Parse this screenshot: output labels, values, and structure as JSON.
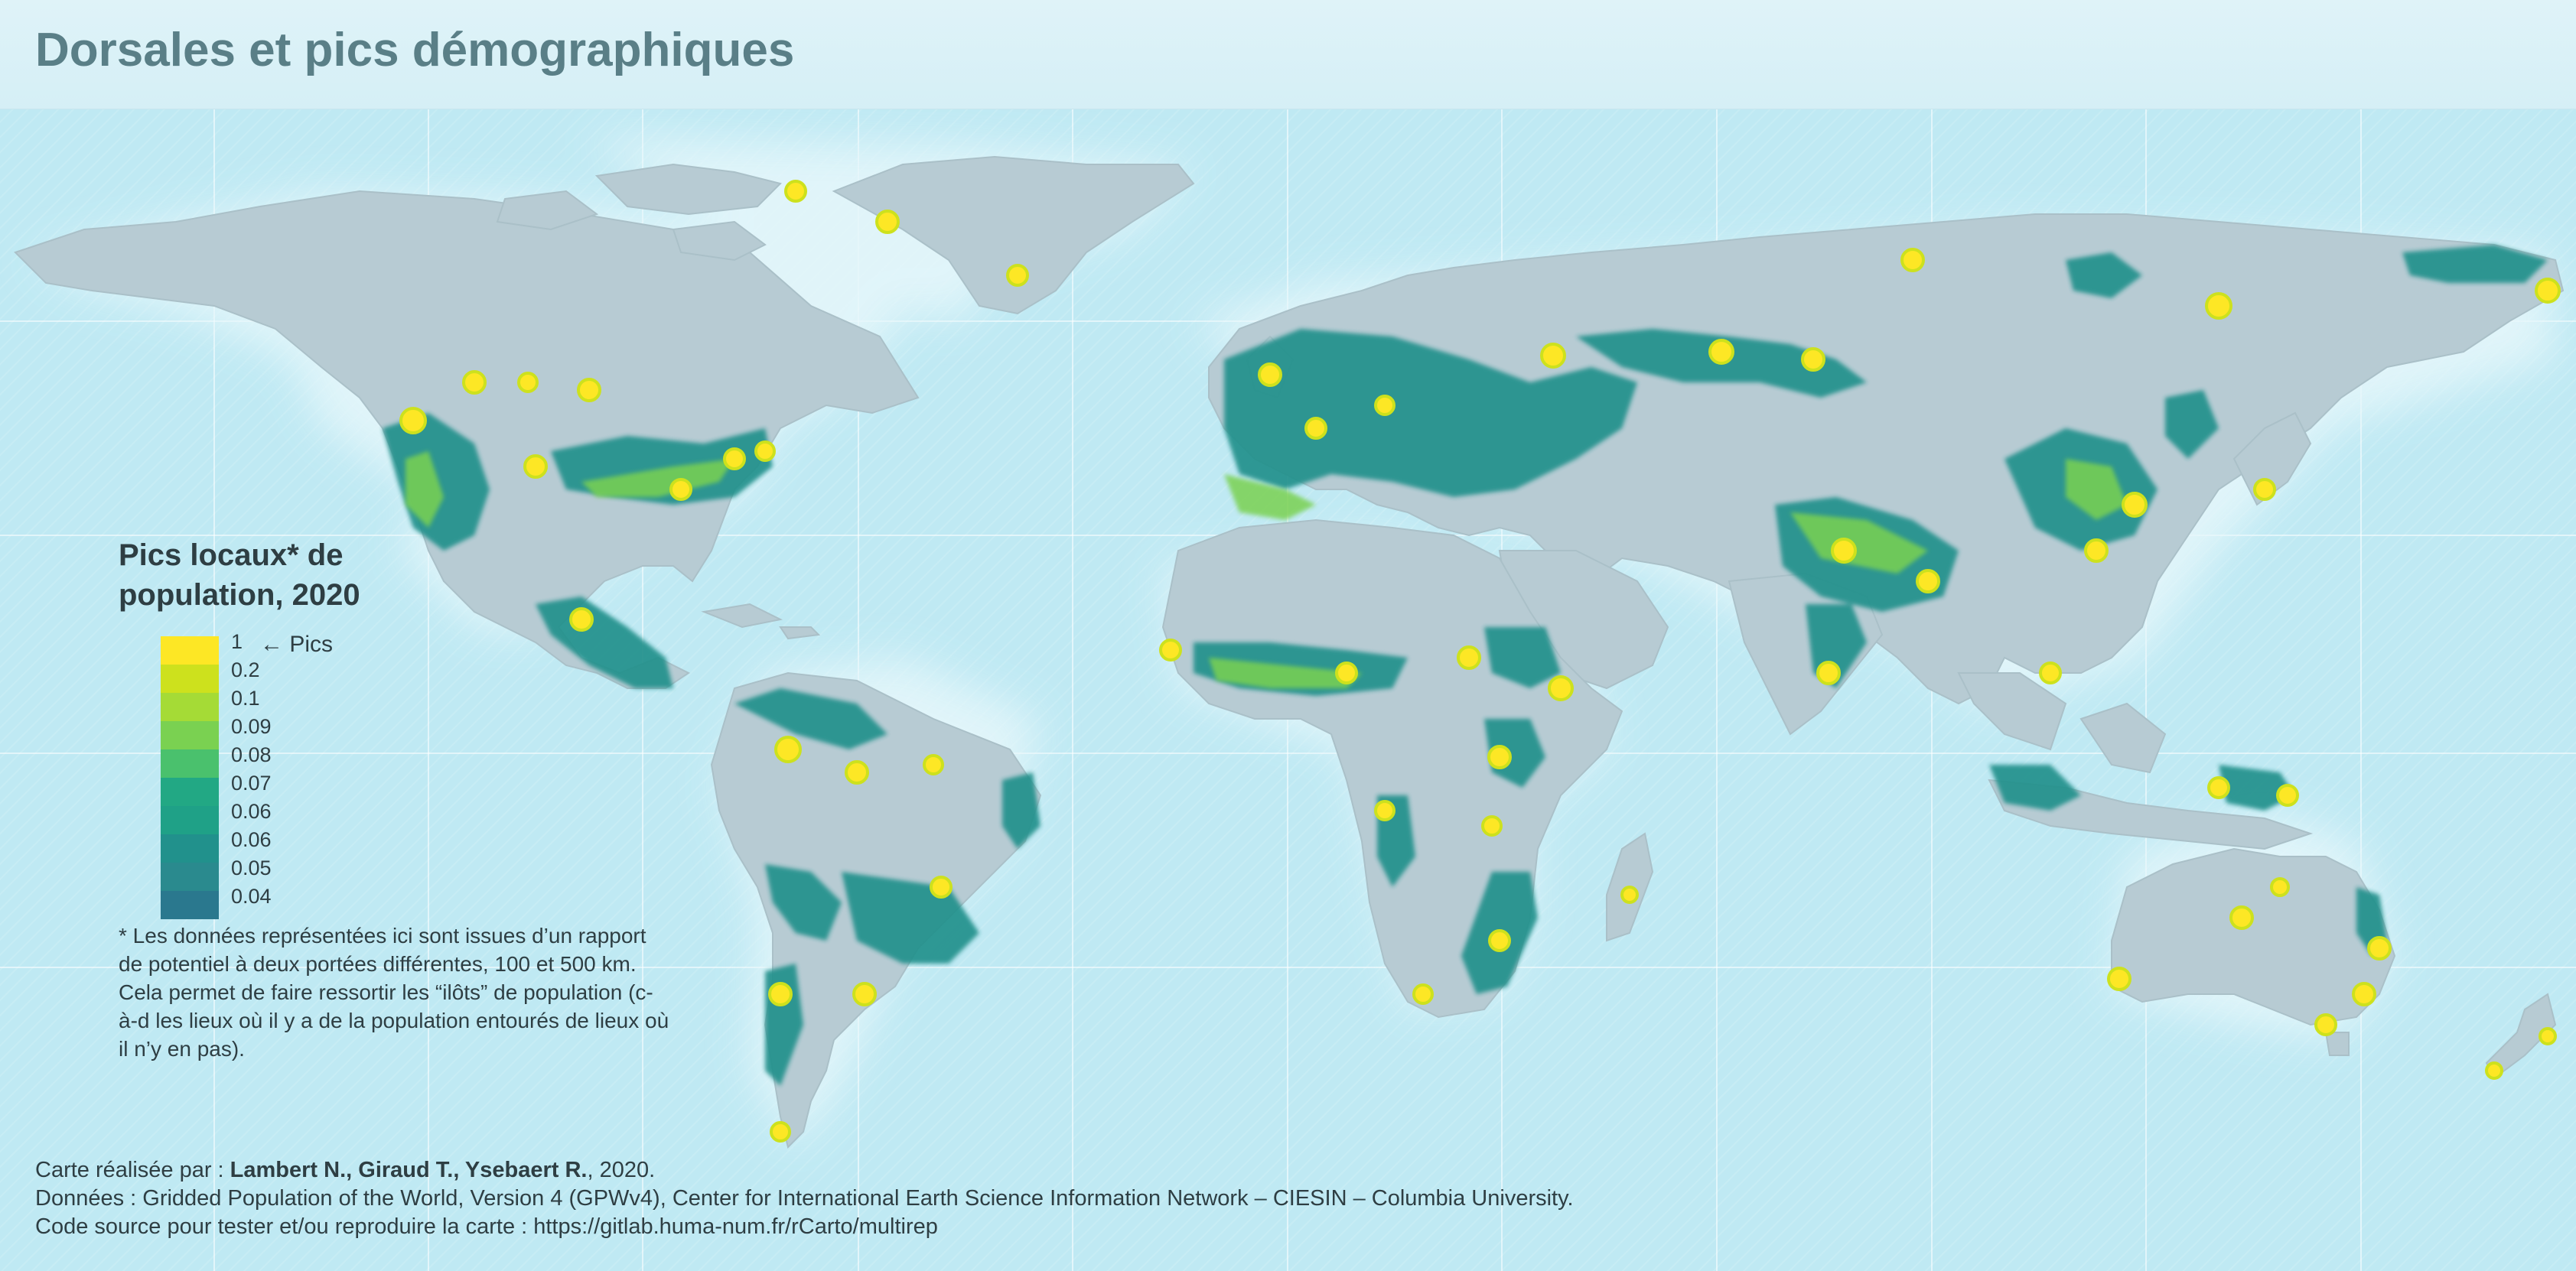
{
  "map": {
    "title": "Dorsales et pics démographiques",
    "colors": {
      "sea": "#bfe9f3",
      "land": "#b7cbd3",
      "pic_ramp": [
        "#fde725",
        "#cde11d",
        "#a5db36",
        "#7ad151",
        "#4ac16d",
        "#22a884",
        "#1fa187",
        "#21918c",
        "#2a788e"
      ]
    },
    "legend": {
      "title_line1": "Pics locaux* de",
      "title_line2": "population, 2020",
      "pics_label": "← Pics",
      "classes": [
        {
          "label": "1",
          "color": "#fde725"
        },
        {
          "label": "0.2",
          "color": "#cde11d"
        },
        {
          "label": "0.1",
          "color": "#a5db36"
        },
        {
          "label": "0.09",
          "color": "#7ad151"
        },
        {
          "label": "0.08",
          "color": "#4ac16d"
        },
        {
          "label": "0.07",
          "color": "#22a884"
        },
        {
          "label": "0.06",
          "color": "#1fa187"
        },
        {
          "label": "0.06",
          "color": "#21918c"
        },
        {
          "label": "0.05",
          "color": "#2a8a8e"
        },
        {
          "label": "0.04",
          "color": "#2a788e"
        }
      ]
    },
    "note": "* Les données représentées ici sont issues d’un rapport de potentiel à deux portées différentes, 100 et 500 km. Cela permet de faire ressortir les “ilôts” de population (c-à-d les lieux où il y a de la population entourés de lieux où il n’y en  pas).",
    "credits": {
      "line1_prefix": "Carte réalisée par : ",
      "line1_authors": "Lambert N., Giraud T., Ysebaert R.",
      "line1_suffix": ", 2020.",
      "line2": "Données : Gridded Population of the World, Version 4 (GPWv4), Center for International Earth Science Information Network – CIESIN – Columbia University.",
      "line3": "Code source pour tester et/ou reproduire la carte : https://gitlab.huma-num.fr/rCarto/multirep"
    }
  }
}
